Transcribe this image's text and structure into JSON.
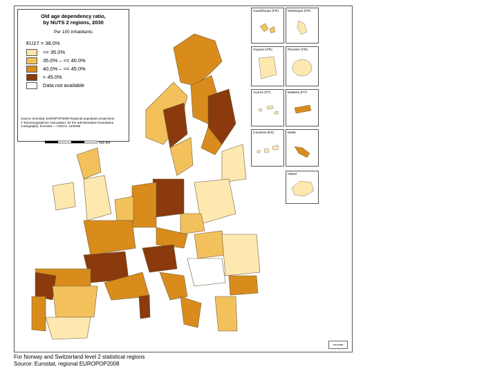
{
  "legend": {
    "title_line1": "Old age dependency ratio,",
    "title_line2": "by NUTS 2 regions, 2030",
    "subtitle": "Per 100 inhabitants",
    "eu_reference": "EU27 = 38.0%",
    "classes": [
      {
        "label": "<= 35.0%",
        "color": "#fde8b0"
      },
      {
        "label": "35.0% – <= 40.0%",
        "color": "#f3c15c"
      },
      {
        "label": "40.0% – <= 45.0%",
        "color": "#d98c1c"
      },
      {
        "label": "> 45.0%",
        "color": "#8b3a0e"
      },
      {
        "label": "Data not available",
        "color": "#ffffff"
      }
    ],
    "source_line1": "Source: Eurostat, EUROPOP2008 Regional population projections",
    "source_line2": "© EuroGeographics Association, for the administrative boundaries",
    "source_line3": "Cartography: Eurostat — GISCO, 12/2009",
    "scale_label": "600 km"
  },
  "insets": [
    {
      "label": "Guadeloupe (FR)"
    },
    {
      "label": "Martinique (FR)"
    },
    {
      "label": "Guyane (FR)"
    },
    {
      "label": "Réunion (FR)"
    },
    {
      "label": "Açores (PT)"
    },
    {
      "label": "Madeira (PT)"
    },
    {
      "label": "Canarias (ES)"
    },
    {
      "label": "Malta"
    },
    {
      "label": "Island"
    }
  ],
  "logo_text": "eurostat",
  "footnote": {
    "line1": "For Norway and Switzerland level 2 statistical regions",
    "line2": "Source: Eurostat, regional EUROPOP2008"
  }
}
